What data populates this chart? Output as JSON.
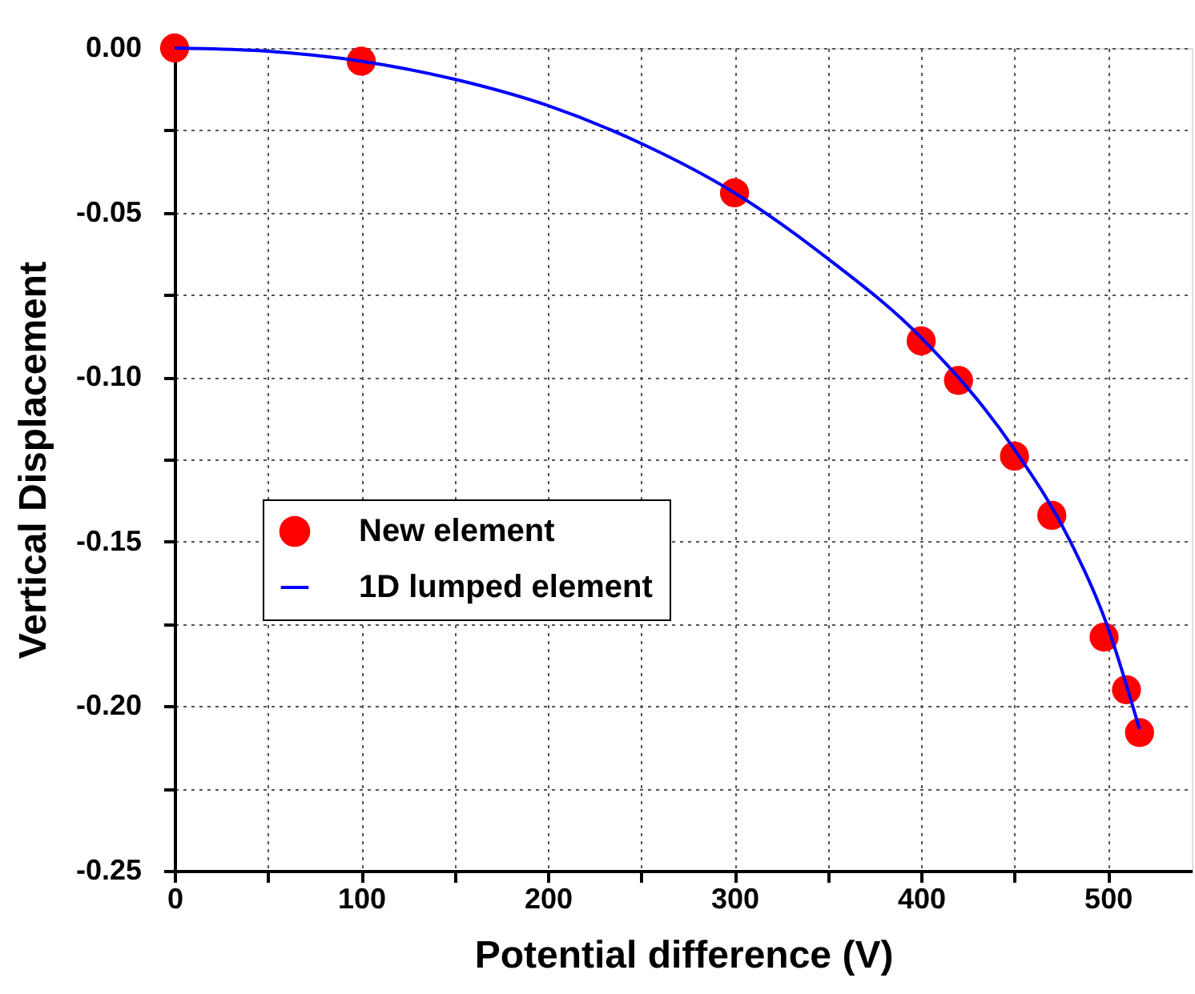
{
  "chart_data": {
    "type": "scatter",
    "xlabel": "Potential difference (V)",
    "ylabel": "Vertical Displacement",
    "series": [
      {
        "name": "New element",
        "color": "#ff0000",
        "marker": "circle",
        "x": [
          0,
          100,
          300,
          400,
          420,
          450,
          470,
          498,
          510,
          517
        ],
        "values": [
          0,
          -0.004,
          -0.044,
          -0.089,
          -0.101,
          -0.124,
          -0.142,
          -0.179,
          -0.195,
          -0.208
        ]
      },
      {
        "name": "1D lumped element",
        "type": "line",
        "color": "#0000ff",
        "line_style": "solid",
        "x": [
          0,
          50,
          100,
          150,
          200,
          250,
          300,
          350,
          400,
          450,
          480,
          500,
          517
        ],
        "values": [
          0,
          -0.001,
          -0.004,
          -0.0095,
          -0.0175,
          -0.029,
          -0.044,
          -0.064,
          -0.088,
          -0.122,
          -0.15,
          -0.176,
          -0.207
        ]
      }
    ],
    "xlim": [
      0,
      545
    ],
    "ylim": [
      -0.25,
      0.0
    ],
    "xticks": [
      0,
      {
        "value": 50,
        "label": null
      },
      100,
      {
        "value": 150,
        "label": null
      },
      200,
      {
        "value": 250,
        "label": null
      },
      300,
      {
        "value": 350,
        "label": null
      },
      400,
      {
        "value": 450,
        "label": null
      },
      500
    ],
    "yticks": [
      {
        "value": -0.25,
        "label": "-0.25"
      },
      {
        "value": -0.225,
        "label": null
      },
      {
        "value": -0.2,
        "label": "-0.20"
      },
      {
        "value": -0.175,
        "label": null
      },
      {
        "value": -0.15,
        "label": "-0.15"
      },
      {
        "value": -0.125,
        "label": null
      },
      {
        "value": -0.1,
        "label": "-0.10"
      },
      {
        "value": -0.075,
        "label": null
      },
      {
        "value": -0.05,
        "label": "-0.05"
      },
      {
        "value": -0.025,
        "label": null
      },
      {
        "value": 0.0,
        "label": "0.00"
      }
    ],
    "grid": true,
    "legend": "left"
  }
}
